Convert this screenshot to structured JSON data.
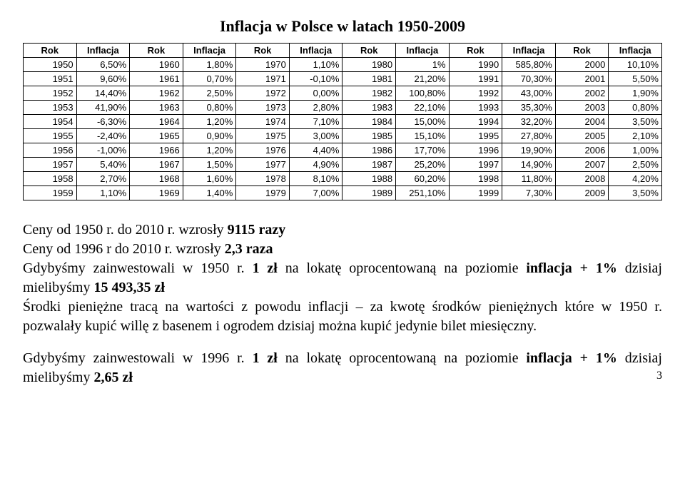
{
  "title": "Inflacja w Polsce w latach 1950-2009",
  "table": {
    "header_year": "Rok",
    "header_val": "Inflacja",
    "col_count": 6,
    "rows": [
      [
        [
          "1950",
          "6,50%"
        ],
        [
          "1960",
          "1,80%"
        ],
        [
          "1970",
          "1,10%"
        ],
        [
          "1980",
          "1%"
        ],
        [
          "1990",
          "585,80%"
        ],
        [
          "2000",
          "10,10%"
        ]
      ],
      [
        [
          "1951",
          "9,60%"
        ],
        [
          "1961",
          "0,70%"
        ],
        [
          "1971",
          "-0,10%"
        ],
        [
          "1981",
          "21,20%"
        ],
        [
          "1991",
          "70,30%"
        ],
        [
          "2001",
          "5,50%"
        ]
      ],
      [
        [
          "1952",
          "14,40%"
        ],
        [
          "1962",
          "2,50%"
        ],
        [
          "1972",
          "0,00%"
        ],
        [
          "1982",
          "100,80%"
        ],
        [
          "1992",
          "43,00%"
        ],
        [
          "2002",
          "1,90%"
        ]
      ],
      [
        [
          "1953",
          "41,90%"
        ],
        [
          "1963",
          "0,80%"
        ],
        [
          "1973",
          "2,80%"
        ],
        [
          "1983",
          "22,10%"
        ],
        [
          "1993",
          "35,30%"
        ],
        [
          "2003",
          "0,80%"
        ]
      ],
      [
        [
          "1954",
          "-6,30%"
        ],
        [
          "1964",
          "1,20%"
        ],
        [
          "1974",
          "7,10%"
        ],
        [
          "1984",
          "15,00%"
        ],
        [
          "1994",
          "32,20%"
        ],
        [
          "2004",
          "3,50%"
        ]
      ],
      [
        [
          "1955",
          "-2,40%"
        ],
        [
          "1965",
          "0,90%"
        ],
        [
          "1975",
          "3,00%"
        ],
        [
          "1985",
          "15,10%"
        ],
        [
          "1995",
          "27,80%"
        ],
        [
          "2005",
          "2,10%"
        ]
      ],
      [
        [
          "1956",
          "-1,00%"
        ],
        [
          "1966",
          "1,20%"
        ],
        [
          "1976",
          "4,40%"
        ],
        [
          "1986",
          "17,70%"
        ],
        [
          "1996",
          "19,90%"
        ],
        [
          "2006",
          "1,00%"
        ]
      ],
      [
        [
          "1957",
          "5,40%"
        ],
        [
          "1967",
          "1,50%"
        ],
        [
          "1977",
          "4,90%"
        ],
        [
          "1987",
          "25,20%"
        ],
        [
          "1997",
          "14,90%"
        ],
        [
          "2007",
          "2,50%"
        ]
      ],
      [
        [
          "1958",
          "2,70%"
        ],
        [
          "1968",
          "1,60%"
        ],
        [
          "1978",
          "8,10%"
        ],
        [
          "1988",
          "60,20%"
        ],
        [
          "1998",
          "11,80%"
        ],
        [
          "2008",
          "4,20%"
        ]
      ],
      [
        [
          "1959",
          "1,10%"
        ],
        [
          "1969",
          "1,40%"
        ],
        [
          "1979",
          "7,00%"
        ],
        [
          "1989",
          "251,10%"
        ],
        [
          "1999",
          "7,30%"
        ],
        [
          "2009",
          "3,50%"
        ]
      ]
    ]
  },
  "body": {
    "p1_prefix": "Ceny od 1950 r. do 2010 r. wzrosły ",
    "p1_bold": "9115 razy",
    "p2_prefix": "Ceny od 1996 r do 2010 r. wzrosły ",
    "p2_bold": "2,3 raza",
    "p3_a": "Gdybyśmy zainwestowali w 1950 r. ",
    "p3_b_bold": "1 zł",
    "p3_c": " na lokatę oprocentowaną na poziomie ",
    "p3_d_bold": "inflacja + 1%",
    "p3_e": " dzisiaj mielibyśmy ",
    "p3_f_bold": "15 493,35 zł",
    "p4": "Środki pieniężne tracą na wartości z powodu inflacji – za kwotę środków pieniężnych które w 1950 r. pozwalały kupić willę z basenem i ogrodem dzisiaj można kupić jedynie bilet miesięczny.",
    "p5_a": "Gdybyśmy zainwestowali w 1996 r. ",
    "p5_b_bold": "1 zł",
    "p5_c": " na lokatę oprocentowaną na poziomie ",
    "p5_d_bold": "inflacja + 1%",
    "p5_e": " dzisiaj mielibyśmy ",
    "p5_f_bold": "2,65 zł"
  },
  "page_number": "3"
}
